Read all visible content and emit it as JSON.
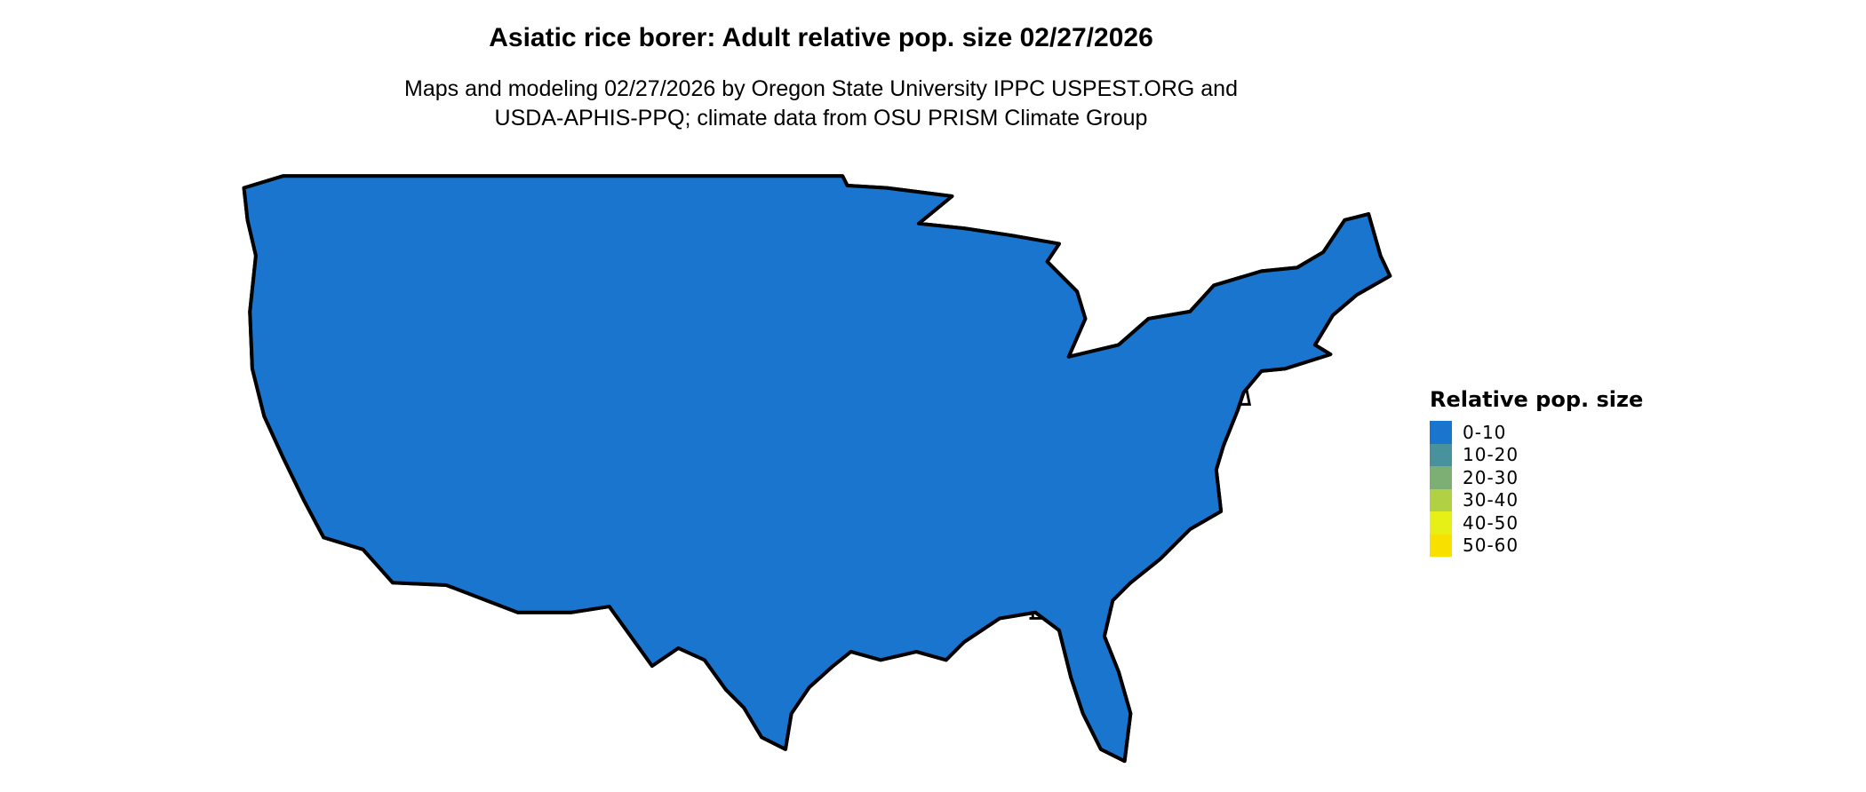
{
  "title": "Asiatic rice borer: Adult relative pop. size 02/27/2026",
  "subtitle_line1": "Maps and modeling 02/27/2026 by Oregon State University IPPC USPEST.ORG and",
  "subtitle_line2": "USDA-APHIS-PPQ; climate data from OSU PRISM Climate Group",
  "map": {
    "region": "Contiguous United States",
    "base_color": "#1A75CF",
    "border_color": "#000000"
  },
  "legend": {
    "title": "Relative pop. size",
    "items": [
      {
        "label": "0-10",
        "color": "#1A75CF"
      },
      {
        "label": "10-20",
        "color": "#4A919E"
      },
      {
        "label": "20-30",
        "color": "#7DAF74"
      },
      {
        "label": "30-40",
        "color": "#B2D044"
      },
      {
        "label": "40-50",
        "color": "#E6EF16"
      },
      {
        "label": "50-60",
        "color": "#F8E000"
      }
    ]
  }
}
